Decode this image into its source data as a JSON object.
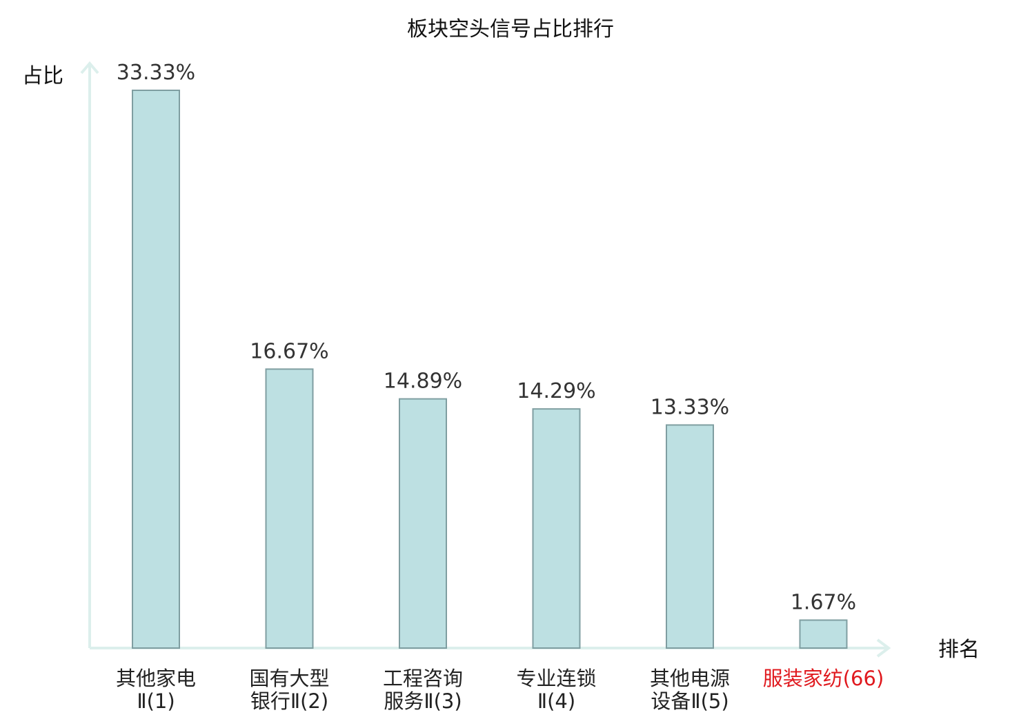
{
  "chart_data": {
    "type": "bar",
    "title": "板块空头信号占比排行",
    "xlabel": "排名",
    "ylabel": "占比",
    "ylim": [
      0,
      35
    ],
    "categories": [
      [
        "其他家电",
        "Ⅱ(1)"
      ],
      [
        "国有大型",
        "银行Ⅱ(2)"
      ],
      [
        "工程咨询",
        "服务Ⅱ(3)"
      ],
      [
        "专业连锁",
        "Ⅱ(4)"
      ],
      [
        "其他电源",
        "设备Ⅱ(5)"
      ],
      [
        "服装家纺(66)"
      ]
    ],
    "values": [
      33.33,
      16.67,
      14.89,
      14.29,
      13.33,
      1.67
    ],
    "value_labels": [
      "33.33%",
      "16.67%",
      "14.89%",
      "14.29%",
      "13.33%",
      "1.67%"
    ],
    "highlight_index": 5,
    "colors": {
      "bar_fill": "#bde0e2",
      "bar_stroke": "#7f9ea1",
      "axis": "#dcefec",
      "highlight": "#e0191e"
    }
  }
}
